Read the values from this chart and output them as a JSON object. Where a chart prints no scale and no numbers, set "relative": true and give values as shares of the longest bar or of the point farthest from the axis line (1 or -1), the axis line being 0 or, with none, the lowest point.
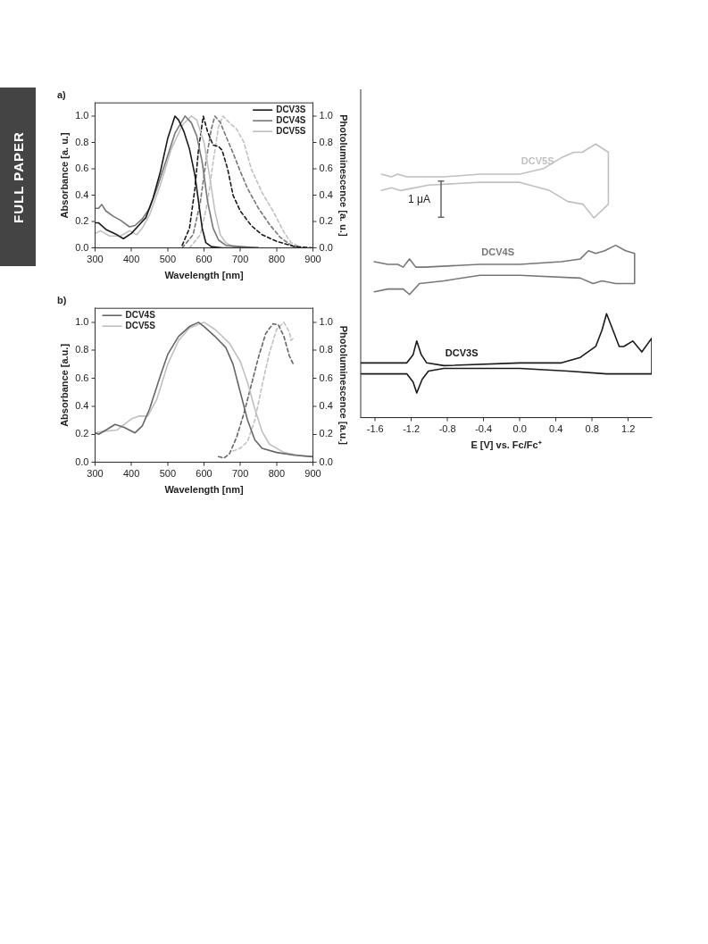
{
  "chart_data": [
    {
      "type": "line",
      "title": "a)",
      "xlabel": "Wavelength [nm]",
      "ylabel": "Absorbance [a. u.]",
      "y2label": "Photoluminescence [a. u.]",
      "annotations": [
        "FULL PAPER"
      ],
      "legend": "top right",
      "xlim": [
        300,
        900
      ],
      "xticks": [
        300,
        400,
        500,
        600,
        700,
        800,
        900
      ],
      "ylim": [
        0,
        1.1
      ],
      "yticks": [
        {
          "value": 0,
          "label": "0.0"
        },
        {
          "value": 0.2,
          "label": "0.2"
        },
        {
          "value": 0.4,
          "label": "0.4"
        },
        {
          "value": 0.6,
          "label": "0.6"
        },
        {
          "value": 0.8,
          "label": "0.8"
        },
        {
          "value": 1,
          "label": "1.0"
        }
      ],
      "y2lim": [
        0,
        1.1
      ],
      "y2ticks": [
        {
          "value": 0,
          "label": "0.0"
        },
        {
          "value": 0.2,
          "label": "0.2"
        },
        {
          "value": 0.4,
          "label": "0.4"
        },
        {
          "value": 0.6,
          "label": "0.6"
        },
        {
          "value": 0.8,
          "label": "0.8"
        },
        {
          "value": 1,
          "label": "1.0"
        }
      ],
      "series": [
        {
          "name": "DCV3S",
          "color": "#1a1a1a",
          "x": [
            300,
            310,
            330,
            360,
            378,
            400,
            420,
            440,
            460,
            480,
            500,
            520,
            530,
            545,
            560,
            575,
            585,
            595,
            605,
            620,
            650,
            700,
            750
          ],
          "values": [
            0.19,
            0.19,
            0.14,
            0.1,
            0.07,
            0.11,
            0.17,
            0.23,
            0.38,
            0.58,
            0.83,
            1.0,
            0.97,
            0.88,
            0.75,
            0.55,
            0.35,
            0.15,
            0.04,
            0.01,
            0,
            0,
            0
          ]
        },
        {
          "name": "DCV4S",
          "color": "#777777",
          "x": [
            300,
            310,
            318,
            330,
            350,
            370,
            395,
            410,
            430,
            450,
            470,
            500,
            520,
            548,
            565,
            580,
            595,
            610,
            625,
            640,
            660,
            700,
            750
          ],
          "values": [
            0.3,
            0.3,
            0.33,
            0.28,
            0.24,
            0.21,
            0.16,
            0.17,
            0.22,
            0.3,
            0.45,
            0.7,
            0.87,
            1.0,
            0.95,
            0.85,
            0.65,
            0.35,
            0.15,
            0.06,
            0.02,
            0.01,
            0
          ]
        },
        {
          "name": "DCV5S",
          "color": "#c0c0c0",
          "x": [
            300,
            315,
            340,
            370,
            395,
            415,
            430,
            450,
            480,
            510,
            540,
            565,
            580,
            600,
            615,
            630,
            645,
            660,
            680,
            750
          ],
          "values": [
            0.11,
            0.13,
            0.09,
            0.09,
            0.13,
            0.1,
            0.15,
            0.25,
            0.48,
            0.75,
            0.93,
            1.0,
            0.97,
            0.8,
            0.55,
            0.28,
            0.1,
            0.04,
            0.01,
            0
          ]
        },
        {
          "color": "#1a1a1a",
          "line_style": "dashed",
          "x": [
            540,
            560,
            575,
            585,
            598,
            610,
            625,
            640,
            650,
            665,
            680,
            700,
            730,
            760,
            800,
            850,
            900
          ],
          "values": [
            0.02,
            0.15,
            0.45,
            0.75,
            1.0,
            0.88,
            0.78,
            0.77,
            0.74,
            0.6,
            0.4,
            0.28,
            0.17,
            0.1,
            0.05,
            0.01,
            0
          ]
        },
        {
          "color": "#777777",
          "line_style": "dashed",
          "x": [
            540,
            570,
            590,
            605,
            620,
            630,
            645,
            660,
            680,
            700,
            720,
            750,
            780,
            810,
            840,
            870
          ],
          "values": [
            0,
            0.1,
            0.35,
            0.65,
            0.9,
            1.0,
            0.95,
            0.85,
            0.72,
            0.58,
            0.45,
            0.3,
            0.18,
            0.08,
            0.02,
            0
          ]
        },
        {
          "color": "#c0c0c0",
          "line_style": "dashed",
          "x": [
            560,
            590,
            610,
            625,
            640,
            652,
            670,
            690,
            710,
            730,
            760,
            790,
            820,
            840,
            870
          ],
          "values": [
            0,
            0.1,
            0.35,
            0.65,
            0.92,
            1.0,
            0.95,
            0.9,
            0.8,
            0.6,
            0.42,
            0.28,
            0.12,
            0.04,
            0
          ]
        }
      ]
    },
    {
      "type": "line",
      "title": "b)",
      "xlabel": "Wavelength [nm]",
      "ylabel": "Absorbance [a.u.]",
      "y2label": "Photoluminescence [a.u.]",
      "legend": "top left",
      "xlim": [
        300,
        900
      ],
      "xticks": [
        300,
        400,
        500,
        600,
        700,
        800,
        900
      ],
      "ylim": [
        0,
        1.1
      ],
      "yticks": [
        {
          "value": 0,
          "label": "0.0"
        },
        {
          "value": 0.2,
          "label": "0.2"
        },
        {
          "value": 0.4,
          "label": "0.4"
        },
        {
          "value": 0.6,
          "label": "0.6"
        },
        {
          "value": 0.8,
          "label": "0.8"
        },
        {
          "value": 1,
          "label": "1.0"
        }
      ],
      "y2lim": [
        0,
        1.1
      ],
      "y2ticks": [
        {
          "value": 0,
          "label": "0.0"
        },
        {
          "value": 0.2,
          "label": "0.2"
        },
        {
          "value": 0.4,
          "label": "0.4"
        },
        {
          "value": 0.6,
          "label": "0.6"
        },
        {
          "value": 0.8,
          "label": "0.8"
        },
        {
          "value": 1,
          "label": "1.0"
        }
      ],
      "series": [
        {
          "name": "DCV4S",
          "color": "#666666",
          "x": [
            300,
            310,
            330,
            355,
            380,
            410,
            430,
            450,
            480,
            500,
            530,
            560,
            585,
            600,
            630,
            660,
            680,
            700,
            720,
            740,
            760,
            800,
            850,
            900
          ],
          "values": [
            0.21,
            0.2,
            0.23,
            0.27,
            0.25,
            0.21,
            0.26,
            0.38,
            0.62,
            0.77,
            0.9,
            0.97,
            1.0,
            0.97,
            0.9,
            0.82,
            0.7,
            0.5,
            0.3,
            0.16,
            0.1,
            0.07,
            0.05,
            0.04
          ]
        },
        {
          "name": "DCV5S",
          "color": "#c0c0c0",
          "x": [
            300,
            320,
            360,
            400,
            420,
            445,
            470,
            500,
            530,
            560,
            600,
            630,
            670,
            700,
            720,
            740,
            760,
            780,
            820,
            860,
            900
          ],
          "values": [
            0.21,
            0.22,
            0.23,
            0.31,
            0.33,
            0.33,
            0.45,
            0.7,
            0.87,
            0.96,
            1.0,
            0.95,
            0.85,
            0.72,
            0.57,
            0.38,
            0.22,
            0.13,
            0.07,
            0.05,
            0.04
          ]
        },
        {
          "color": "#666666",
          "line_style": "dashed",
          "x": [
            640,
            655,
            670,
            690,
            710,
            730,
            750,
            770,
            790,
            805,
            820,
            835,
            848
          ],
          "values": [
            0.04,
            0.03,
            0.06,
            0.18,
            0.35,
            0.55,
            0.75,
            0.92,
            0.99,
            0.98,
            0.9,
            0.76,
            0.69
          ]
        },
        {
          "color": "#c0c0c0",
          "line_style": "dashed",
          "x": [
            680,
            700,
            720,
            740,
            760,
            780,
            800,
            820,
            835,
            840,
            848
          ],
          "values": [
            0.08,
            0.1,
            0.15,
            0.3,
            0.55,
            0.78,
            0.95,
            1.0,
            0.93,
            0.87,
            0.89
          ]
        }
      ]
    },
    {
      "type": "line",
      "xlabel": "E [V] vs. Fc/Fc⁺",
      "relative": true,
      "annotations": [
        "1 μA"
      ],
      "xlim": [
        -1.76,
        1.46
      ],
      "xticks": [
        {
          "value": -1.6,
          "label": "-1.6"
        },
        {
          "value": -1.2,
          "label": "-1.2"
        },
        {
          "value": -0.8,
          "label": "-0.8"
        },
        {
          "value": -0.4,
          "label": "-0.4"
        },
        {
          "value": 0,
          "label": "0.0"
        },
        {
          "value": 0.4,
          "label": "0.4"
        },
        {
          "value": 0.8,
          "label": "0.8"
        },
        {
          "value": 1.2,
          "label": "1.2"
        }
      ],
      "series": [
        {
          "name": "DCV5S",
          "color": "#c0c0c0",
          "x": [
            -1.53,
            -1.42,
            -1.35,
            -1.25,
            -0.84,
            -0.44,
            0,
            0.26,
            0.46,
            0.6,
            0.69,
            0.84,
            0.98,
            0.98,
            0.82,
            0.7,
            0.53,
            0.33,
            0,
            -0.44,
            -1.01,
            -1.32,
            -1.42,
            -1.53
          ],
          "values": [
            0.89,
            0.88,
            0.89,
            0.88,
            0.88,
            0.89,
            0.89,
            0.91,
            0.95,
            0.97,
            0.97,
            1.0,
            0.97,
            0.78,
            0.73,
            0.78,
            0.79,
            0.83,
            0.86,
            0.86,
            0.85,
            0.83,
            0.84,
            0.83
          ]
        },
        {
          "name": "DCV4S",
          "color": "#777777",
          "x": [
            -1.61,
            -1.46,
            -1.35,
            -1.29,
            -1.22,
            -1.15,
            -1.05,
            -0.44,
            0,
            0.46,
            0.67,
            0.76,
            0.84,
            0.94,
            1.06,
            1.17,
            1.27,
            1.27,
            1.17,
            1.06,
            0.91,
            0.81,
            0.67,
            0,
            -0.44,
            -0.84,
            -1.11,
            -1.22,
            -1.29,
            -1.46,
            -1.61
          ],
          "values": [
            0.57,
            0.56,
            0.56,
            0.55,
            0.58,
            0.55,
            0.55,
            0.56,
            0.56,
            0.57,
            0.58,
            0.61,
            0.6,
            0.61,
            0.63,
            0.61,
            0.6,
            0.49,
            0.49,
            0.49,
            0.5,
            0.49,
            0.51,
            0.52,
            0.52,
            0.5,
            0.49,
            0.45,
            0.47,
            0.47,
            0.46
          ]
        },
        {
          "name": "DCV3S",
          "color": "#1a1a1a",
          "x": [
            -1.76,
            -1.35,
            -1.25,
            -1.18,
            -1.14,
            -1.09,
            -1.03,
            -0.84,
            0,
            0.46,
            0.67,
            0.84,
            0.91,
            0.96,
            1.03,
            1.1,
            1.15,
            1.25,
            1.35,
            1.46,
            1.46,
            0.96,
            0.53,
            0,
            -0.84,
            -1.01,
            -1.08,
            -1.14,
            -1.18,
            -1.25,
            -1.76
          ],
          "values": [
            0.2,
            0.2,
            0.2,
            0.23,
            0.28,
            0.23,
            0.2,
            0.19,
            0.2,
            0.2,
            0.22,
            0.26,
            0.32,
            0.38,
            0.32,
            0.26,
            0.26,
            0.28,
            0.24,
            0.29,
            0.16,
            0.16,
            0.17,
            0.18,
            0.18,
            0.17,
            0.14,
            0.09,
            0.13,
            0.16,
            0.16
          ]
        }
      ]
    }
  ]
}
